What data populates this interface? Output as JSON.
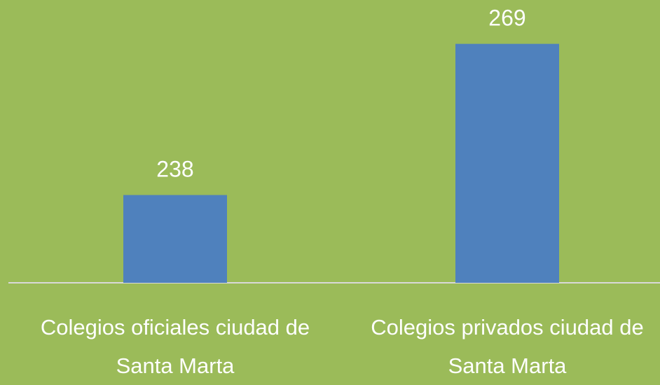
{
  "chart_data": {
    "type": "bar",
    "categories": [
      "Colegios oficiales ciudad de Santa Marta",
      "Colegios privados ciudad de Santa Marta"
    ],
    "values": [
      238,
      269
    ],
    "color": "#4f81bd",
    "ylim": [
      220,
      280
    ]
  }
}
